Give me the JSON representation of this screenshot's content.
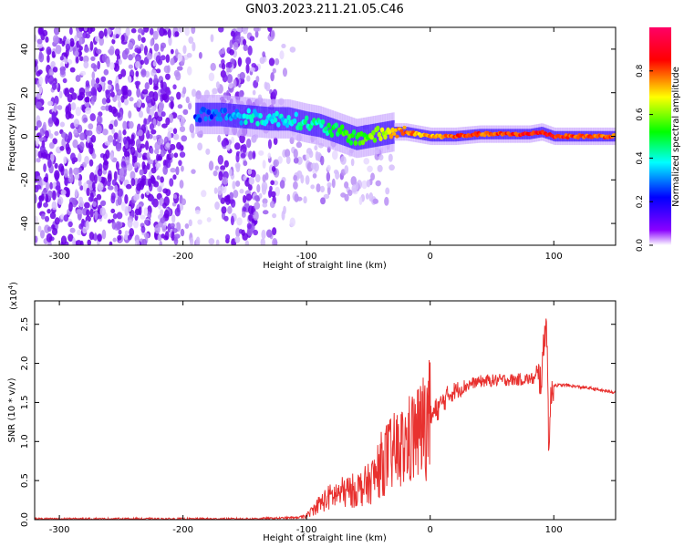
{
  "title": "GN03.2023.211.21.05.C46",
  "chart_data": [
    {
      "type": "heatmap",
      "xlabel": "Height of straight line (km)",
      "ylabel": "Frequency (Hz)",
      "xlim": [
        -320,
        150
      ],
      "ylim": [
        -50,
        50
      ],
      "xticks": [
        -300,
        -200,
        -100,
        0,
        100
      ],
      "yticks": [
        -40,
        -20,
        0,
        20,
        40
      ],
      "colorbar": {
        "label": "Normalized spectral amplitude",
        "range": [
          0.0,
          1.0
        ],
        "ticks": [
          "0.0",
          "0.2",
          "0.4",
          "0.6",
          "0.8"
        ],
        "tick_values": [
          0.0,
          0.2,
          0.4,
          0.6,
          0.8
        ],
        "colors": [
          "#ffffff",
          "#8a00ff",
          "#0000ff",
          "#00ffff",
          "#00ff00",
          "#ffff00",
          "#ff0000",
          "#ff00aa"
        ]
      },
      "signal_track": {
        "x": [
          -190,
          -170,
          -150,
          -130,
          -115,
          -100,
          -90,
          -80,
          -70,
          -60,
          -50,
          -40,
          -30,
          -20,
          -10,
          0,
          20,
          40,
          60,
          80,
          90,
          100,
          120,
          150
        ],
        "frequency": [
          10,
          10,
          9,
          8,
          8,
          6,
          5,
          3,
          1,
          -1,
          0,
          1,
          2,
          2,
          1,
          0,
          0,
          1,
          1,
          1,
          2,
          0,
          0,
          0
        ],
        "amplitude": [
          0.35,
          0.35,
          0.45,
          0.45,
          0.45,
          0.5,
          0.5,
          0.55,
          0.6,
          0.6,
          0.65,
          0.7,
          0.8,
          0.85,
          0.8,
          0.8,
          0.85,
          0.85,
          0.85,
          0.9,
          0.9,
          0.9,
          0.85,
          0.85
        ]
      }
    },
    {
      "type": "line",
      "xlabel": "Height of straight line (km)",
      "ylabel": "SNR (10 * v/v)",
      "multiplier": "(x10",
      "multiplier_exp": "4",
      "multiplier_close": ")",
      "xlim": [
        -320,
        150
      ],
      "ylim": [
        0,
        2.8
      ],
      "xticks": [
        -300,
        -200,
        -100,
        0,
        100
      ],
      "yticks": [
        "0.0",
        "0.5",
        "1.0",
        "1.5",
        "2.0",
        "2.5"
      ],
      "ytick_values": [
        0,
        0.5,
        1.0,
        1.5,
        2.0,
        2.5
      ],
      "color": "#e8312f",
      "series": [
        {
          "x": [
            -320,
            -300,
            -250,
            -200,
            -150,
            -120,
            -105,
            -100,
            -95,
            -90,
            -80,
            -70,
            -60,
            -50,
            -45,
            -40,
            -35,
            -30,
            -25,
            -20,
            -15,
            -10,
            -5,
            0,
            5,
            10,
            15,
            20,
            25,
            30,
            35,
            40,
            50,
            60,
            70,
            80,
            85,
            90,
            92,
            94,
            96,
            98,
            100,
            110,
            120,
            130,
            140,
            150
          ],
          "y": [
            0.01,
            0.01,
            0.01,
            0.01,
            0.01,
            0.02,
            0.03,
            0.05,
            0.12,
            0.2,
            0.3,
            0.35,
            0.38,
            0.45,
            0.55,
            0.7,
            0.8,
            0.85,
            0.9,
            0.95,
            1.05,
            1.1,
            1.2,
            1.3,
            1.4,
            1.5,
            1.6,
            1.65,
            1.68,
            1.72,
            1.75,
            1.77,
            1.78,
            1.79,
            1.79,
            1.8,
            1.8,
            1.82,
            2.2,
            2.7,
            0.95,
            1.6,
            1.72,
            1.72,
            1.7,
            1.68,
            1.65,
            1.63
          ]
        }
      ]
    }
  ]
}
